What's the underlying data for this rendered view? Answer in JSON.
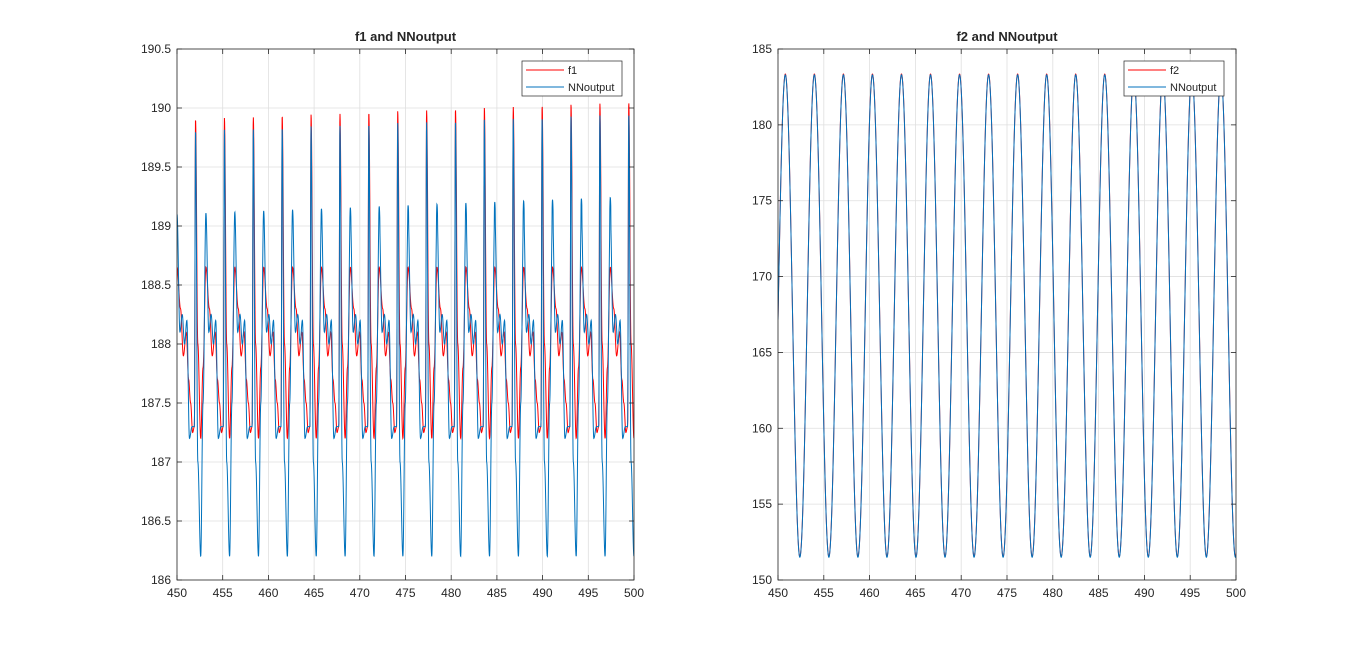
{
  "chart_data": [
    {
      "type": "line",
      "title": "f1 and NNoutput",
      "xlabel": "",
      "ylabel": "",
      "xlim": [
        450,
        500
      ],
      "ylim": [
        186,
        190.5
      ],
      "x_ticks": [
        450,
        455,
        460,
        465,
        470,
        475,
        480,
        485,
        490,
        495,
        500
      ],
      "x_tick_labels": [
        "450",
        "455",
        "460",
        "465",
        "470",
        "475",
        "480",
        "485",
        "490",
        "495",
        "500"
      ],
      "y_ticks": [
        186,
        186.5,
        187,
        187.5,
        188,
        188.5,
        189,
        189.5,
        190,
        190.5
      ],
      "y_tick_labels": [
        "186",
        "186.5",
        "187",
        "187.5",
        "188",
        "188.5",
        "189",
        "189.5",
        "190",
        "190.5"
      ],
      "grid": true,
      "legend_position": "top-right",
      "period": 3.16,
      "phase_start": 451.9,
      "series": [
        {
          "name": "f1",
          "color": "#ff0000",
          "x_knots": [
            0,
            0.04,
            0.12,
            0.22,
            0.3,
            0.4,
            0.52,
            0.62,
            0.72,
            0.8,
            0.87,
            0.94,
            1
          ],
          "y_knots": [
            187.3,
            189.9,
            188.0,
            187.2,
            187.8,
            188.65,
            188.3,
            187.9,
            188.1,
            187.7,
            187.5,
            187.25,
            187.3
          ]
        },
        {
          "name": "NNoutput",
          "color": "#0072bd",
          "x_knots": [
            0,
            0.04,
            0.12,
            0.22,
            0.3,
            0.4,
            0.5,
            0.58,
            0.66,
            0.74,
            0.83,
            0.92,
            1
          ],
          "y_knots": [
            187.3,
            189.8,
            187.0,
            186.2,
            187.5,
            189.1,
            188.1,
            188.25,
            188.0,
            188.2,
            187.2,
            187.3,
            187.3
          ]
        }
      ]
    },
    {
      "type": "line",
      "title": "f2 and NNoutput",
      "xlabel": "",
      "ylabel": "",
      "xlim": [
        450,
        500
      ],
      "ylim": [
        150,
        185
      ],
      "x_ticks": [
        450,
        455,
        460,
        465,
        470,
        475,
        480,
        485,
        490,
        495,
        500
      ],
      "x_tick_labels": [
        "450",
        "455",
        "460",
        "465",
        "470",
        "475",
        "480",
        "485",
        "490",
        "495",
        "500"
      ],
      "y_ticks": [
        150,
        155,
        160,
        165,
        170,
        175,
        180,
        185
      ],
      "y_tick_labels": [
        "150",
        "155",
        "160",
        "165",
        "170",
        "175",
        "180",
        "185"
      ],
      "grid": true,
      "legend_position": "top-right",
      "period": 3.17,
      "crest_x": 450.8,
      "crest_y": 183.3,
      "trough_y": 151.5,
      "series": [
        {
          "name": "f2",
          "color": "#ff0000"
        },
        {
          "name": "NNoutput",
          "color": "#0072bd"
        }
      ]
    }
  ]
}
